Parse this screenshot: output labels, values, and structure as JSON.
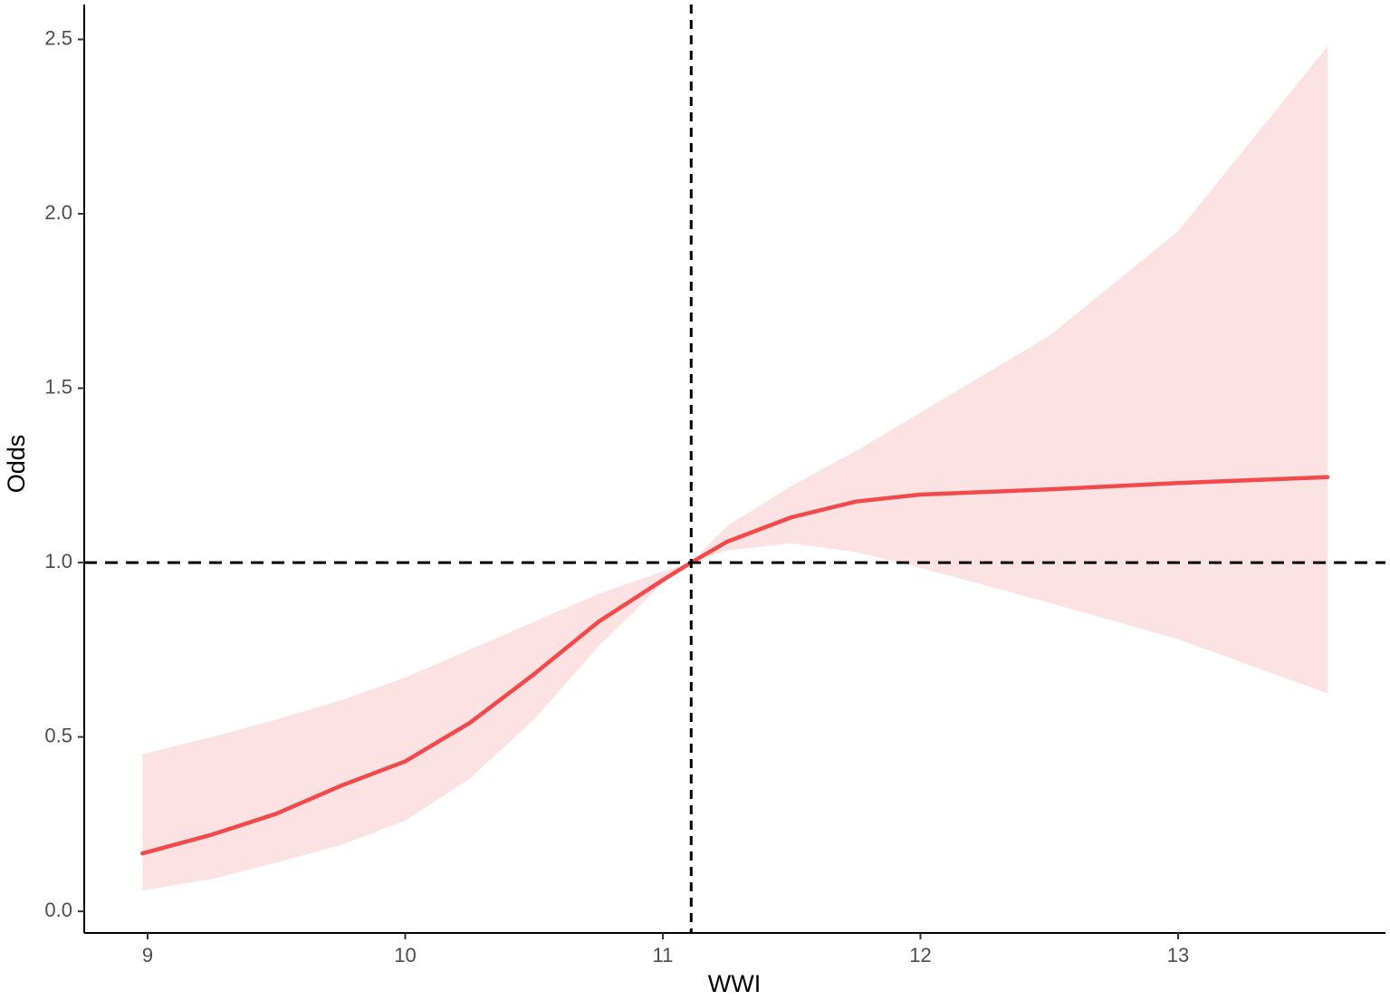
{
  "chart_data": {
    "type": "line",
    "x_label": "WWI",
    "y_label": "Odds",
    "x": [
      8.98,
      9.25,
      9.5,
      9.75,
      10,
      10.25,
      10.5,
      10.75,
      11,
      11.11,
      11.25,
      11.5,
      11.75,
      12,
      12.5,
      13,
      13.58
    ],
    "series": [
      {
        "color": "#f24a4a",
        "values": [
          0.166,
          0.22,
          0.28,
          0.36,
          0.43,
          0.54,
          0.68,
          0.83,
          0.95,
          1.0,
          1.06,
          1.13,
          1.175,
          1.195,
          1.21,
          1.228,
          1.245
        ]
      }
    ],
    "band": {
      "color": "#fde2e3",
      "upper": [
        0.45,
        0.5,
        0.55,
        0.605,
        0.67,
        0.75,
        0.83,
        0.91,
        0.975,
        1.0,
        1.105,
        1.22,
        1.32,
        1.43,
        1.65,
        1.95,
        2.48
      ],
      "lower": [
        0.06,
        0.093,
        0.14,
        0.19,
        0.26,
        0.38,
        0.55,
        0.76,
        0.94,
        1.0,
        1.035,
        1.055,
        1.03,
        0.985,
        0.885,
        0.78,
        0.625
      ]
    },
    "vline": 11.11,
    "hline": 1.0,
    "xlim": [
      8.754,
      13.805
    ],
    "xticks": [
      9,
      10,
      11,
      12,
      13
    ],
    "ylim": [
      -0.062,
      2.6
    ],
    "yticks": [
      {
        "value": 0,
        "label": "0.0"
      },
      0.5,
      {
        "value": 1,
        "label": "1.0"
      },
      1.5,
      {
        "value": 2,
        "label": "2.0"
      },
      2.5
    ],
    "grid": false
  }
}
